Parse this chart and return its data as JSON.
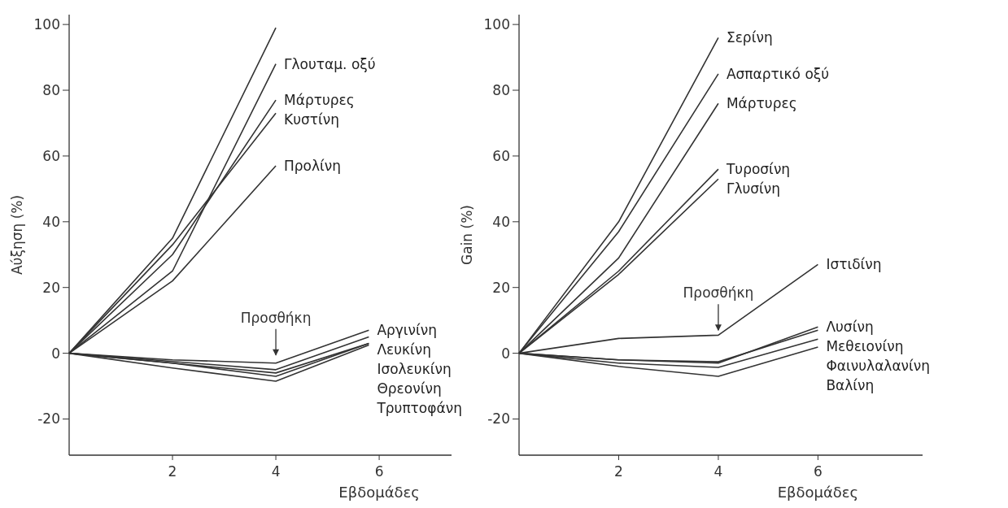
{
  "chart_data": [
    {
      "type": "line",
      "xlabel": "Εβδομάδες",
      "ylabel": "Αύξηση (%)",
      "xlim": [
        0,
        7.4
      ],
      "ylim": [
        -31,
        103
      ],
      "xticks": [
        2,
        4,
        6
      ],
      "yticks": [
        -20,
        0,
        20,
        40,
        60,
        80,
        100
      ],
      "grid": false,
      "legend": false,
      "annotations": [
        {
          "text": "Προσθήκη",
          "x": 4,
          "y": -2
        }
      ],
      "series": [
        {
          "color": "#333333",
          "x": [
            0,
            2,
            4
          ],
          "values": [
            0,
            35,
            99
          ]
        },
        {
          "name": "Γλουταμ. οξύ",
          "color": "#333333",
          "x": [
            0,
            2,
            4
          ],
          "values": [
            0,
            25,
            88
          ]
        },
        {
          "name": "Μάρτυρες",
          "color": "#333333",
          "x": [
            0,
            2,
            4
          ],
          "values": [
            0,
            30,
            77
          ]
        },
        {
          "name": "Κυστίνη",
          "color": "#333333",
          "x": [
            0,
            2,
            4
          ],
          "values": [
            0,
            33,
            73
          ]
        },
        {
          "name": "Προλίνη",
          "color": "#333333",
          "x": [
            0,
            2,
            4
          ],
          "values": [
            0,
            22,
            57
          ]
        },
        {
          "name": "Αργινίνη",
          "color": "#333333",
          "x": [
            0,
            2,
            4,
            5.8
          ],
          "values": [
            0,
            -2,
            -3,
            7
          ]
        },
        {
          "name": "Λευκίνη",
          "color": "#333333",
          "x": [
            0,
            2,
            4,
            5.8
          ],
          "values": [
            0,
            -2.5,
            -5,
            5
          ]
        },
        {
          "name": "Ισολευκίνη",
          "color": "#333333",
          "x": [
            0,
            2,
            4,
            5.8
          ],
          "values": [
            0,
            -3,
            -6,
            3
          ]
        },
        {
          "name": "Θρεονίνη",
          "color": "#333333",
          "x": [
            0,
            2,
            4,
            5.8
          ],
          "values": [
            0,
            -3,
            -7,
            3
          ]
        },
        {
          "name": "Τρυπτοφάνη",
          "color": "#333333",
          "x": [
            0,
            2,
            4,
            5.8
          ],
          "values": [
            0,
            -4.5,
            -8.5,
            2.5
          ]
        }
      ]
    },
    {
      "type": "line",
      "xlabel": "Εβδομάδες",
      "ylabel": "Gain (%)",
      "xlim": [
        0,
        8.1
      ],
      "ylim": [
        -31,
        103
      ],
      "xticks": [
        2,
        4,
        6
      ],
      "yticks": [
        -20,
        0,
        20,
        40,
        60,
        80,
        100
      ],
      "grid": false,
      "legend": false,
      "annotations": [
        {
          "text": "Προσθήκη",
          "x": 4,
          "y": 5.5
        }
      ],
      "series": [
        {
          "name": "Σερίνη",
          "color": "#333333",
          "x": [
            0,
            2,
            4
          ],
          "values": [
            0,
            40,
            96
          ]
        },
        {
          "name": "Ασπαρτικό οξύ",
          "color": "#333333",
          "x": [
            0,
            2,
            4
          ],
          "values": [
            0,
            37,
            85
          ]
        },
        {
          "name": "Μάρτυρες",
          "color": "#333333",
          "x": [
            0,
            2,
            4
          ],
          "values": [
            0,
            29,
            76
          ]
        },
        {
          "name": "Τυροσίνη",
          "color": "#333333",
          "x": [
            0,
            2,
            4
          ],
          "values": [
            0,
            25,
            56
          ]
        },
        {
          "name": "Γλυσίνη",
          "color": "#333333",
          "x": [
            0,
            2,
            4
          ],
          "values": [
            0,
            24,
            53
          ]
        },
        {
          "name": "Ιστιδίνη",
          "color": "#333333",
          "x": [
            0,
            2,
            4,
            6
          ],
          "values": [
            0,
            4.5,
            5.5,
            27
          ]
        },
        {
          "name": "Λυσίνη",
          "color": "#333333",
          "x": [
            0,
            2,
            4,
            6
          ],
          "values": [
            0,
            -2,
            -3,
            8
          ]
        },
        {
          "name": "Μεθειονίνη",
          "color": "#333333",
          "x": [
            0,
            2,
            4,
            6
          ],
          "values": [
            0,
            -2,
            -2.6,
            7
          ]
        },
        {
          "name": "Φαινυλαλανίνη",
          "color": "#333333",
          "x": [
            0,
            2,
            4,
            6
          ],
          "values": [
            0,
            -3,
            -4.3,
            4.3
          ]
        },
        {
          "name": "Βαλίνη",
          "color": "#333333",
          "x": [
            0,
            2,
            4,
            6
          ],
          "values": [
            0,
            -4,
            -7,
            1.9
          ]
        }
      ]
    }
  ]
}
